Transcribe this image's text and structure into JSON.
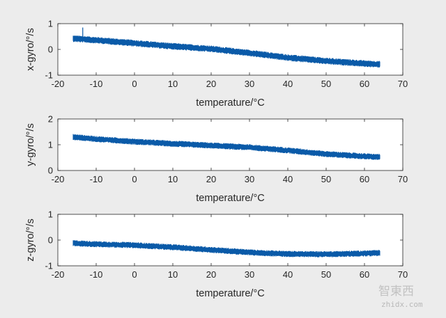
{
  "chart_data": [
    {
      "type": "line",
      "xlabel": "temperature/°C",
      "ylabel": "x-gyro/°/s",
      "xlim": [
        -20,
        70
      ],
      "ylim": [
        -1,
        1
      ],
      "xticks": [
        "-20",
        "-10",
        "0",
        "10",
        "20",
        "30",
        "40",
        "50",
        "60",
        "70"
      ],
      "yticks": [
        "-1",
        "0",
        "1"
      ],
      "grid": false,
      "series": [
        {
          "color": "#0a5aa8",
          "x": [
            -16,
            -10,
            0,
            10,
            20,
            30,
            40,
            50,
            60,
            64
          ],
          "y": [
            0.42,
            0.36,
            0.24,
            0.12,
            0.02,
            -0.14,
            -0.32,
            -0.45,
            -0.55,
            -0.58
          ],
          "band": 0.13
        }
      ],
      "annotations": [
        {
          "x": -13.5,
          "y": 0.85,
          "text": ""
        }
      ]
    },
    {
      "type": "line",
      "xlabel": "temperature/°C",
      "ylabel": "y-gyro/°/s",
      "xlim": [
        -20,
        70
      ],
      "ylim": [
        0,
        2
      ],
      "xticks": [
        "-20",
        "-10",
        "0",
        "10",
        "20",
        "30",
        "40",
        "50",
        "60",
        "70"
      ],
      "yticks": [
        "0",
        "1",
        "2"
      ],
      "grid": false,
      "series": [
        {
          "color": "#0a5aa8",
          "x": [
            -16,
            -10,
            0,
            10,
            20,
            30,
            40,
            50,
            60,
            64
          ],
          "y": [
            1.3,
            1.22,
            1.12,
            1.04,
            0.97,
            0.9,
            0.78,
            0.64,
            0.55,
            0.52
          ],
          "band": 0.12
        }
      ]
    },
    {
      "type": "line",
      "xlabel": "temperature/°C",
      "ylabel": "z-gyro/°/s",
      "xlim": [
        -20,
        70
      ],
      "ylim": [
        -1,
        1
      ],
      "xticks": [
        "-20",
        "-10",
        "0",
        "10",
        "20",
        "30",
        "40",
        "50",
        "60",
        "70"
      ],
      "yticks": [
        "-1",
        "0",
        "1"
      ],
      "grid": false,
      "series": [
        {
          "color": "#0a5aa8",
          "x": [
            -16,
            -10,
            0,
            10,
            20,
            30,
            40,
            50,
            60,
            64
          ],
          "y": [
            -0.12,
            -0.16,
            -0.2,
            -0.28,
            -0.38,
            -0.48,
            -0.54,
            -0.55,
            -0.52,
            -0.5
          ],
          "band": 0.12
        }
      ]
    }
  ],
  "watermark": {
    "line1": "智東西",
    "line2": "zhidx.com"
  }
}
